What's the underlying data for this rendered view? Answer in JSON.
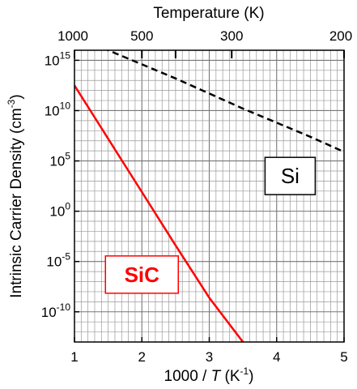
{
  "chart_data": {
    "type": "line",
    "title": "",
    "xlabel": "1000 / T (K-1)",
    "xlabel_parts": {
      "prefix": "1000 / ",
      "var": "T",
      "suffix": " (K",
      "exp": "-1",
      "close": ")"
    },
    "ylabel": "Intrinsic Carrier Density (cm-3)",
    "ylabel_parts": {
      "text": "Intrinsic Carrier Density (cm",
      "exp": "-3",
      "close": ")"
    },
    "top_xlabel": "Temperature (K)",
    "xlim": [
      1,
      5
    ],
    "ylim_log10": [
      -13,
      16
    ],
    "y_scale": "log",
    "grid": true,
    "x_ticks": [
      "1",
      "2",
      "3",
      "4",
      "5"
    ],
    "y_ticks": [
      {
        "base": "10",
        "exp": "15",
        "log": 15
      },
      {
        "base": "10",
        "exp": "10",
        "log": 10
      },
      {
        "base": "10",
        "exp": "5",
        "log": 5
      },
      {
        "base": "10",
        "exp": "0",
        "log": 0
      },
      {
        "base": "10",
        "exp": "-5",
        "log": -5
      },
      {
        "base": "10",
        "exp": "-10",
        "log": -10
      }
    ],
    "top_ticks": [
      {
        "label": "1000",
        "inv_T": 1.0
      },
      {
        "label": "500",
        "inv_T": 2.0
      },
      {
        "label": "300",
        "inv_T": 3.333
      },
      {
        "label": "200",
        "inv_T": 5.0
      }
    ],
    "top_minor_ticks": [
      2.5
    ],
    "series": [
      {
        "name": "Si",
        "color": "#000000",
        "dash": true,
        "x": [
          1.0,
          1.5,
          2.0,
          2.5,
          3.0,
          3.5,
          4.0,
          4.5,
          5.0
        ],
        "log10_y": [
          17.6,
          16.0,
          14.6,
          13.2,
          11.7,
          10.2,
          8.8,
          7.4,
          5.9
        ]
      },
      {
        "name": "SiC",
        "color": "#ff0000",
        "dash": false,
        "x": [
          1.0,
          1.5,
          2.0,
          2.5,
          3.0,
          3.5,
          3.8
        ],
        "log10_y": [
          12.5,
          7.2,
          1.9,
          -3.4,
          -8.6,
          -13.0,
          -16.0
        ]
      }
    ],
    "series_labels": [
      {
        "text": "Si",
        "color": "#000000",
        "x": 4.2,
        "log10_y": 3.5
      },
      {
        "text": "SiC",
        "color": "#ff0000",
        "x": 2.0,
        "log10_y": -6.3
      }
    ]
  }
}
